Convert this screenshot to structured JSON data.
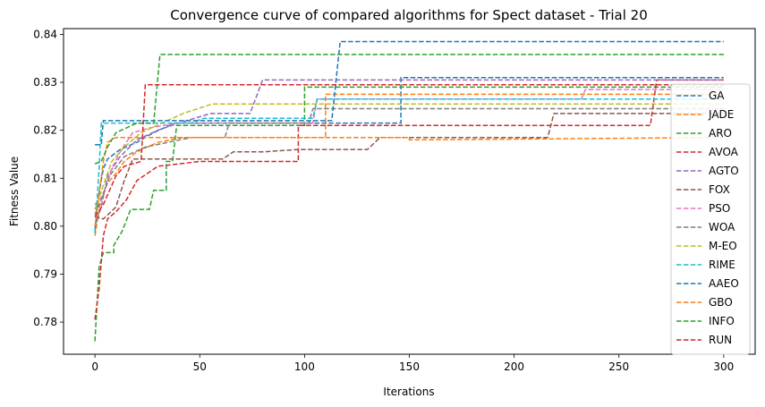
{
  "chart_data": {
    "type": "line",
    "title": "Convergence curve of compared algorithms for Spect dataset - Trial 20",
    "xlabel": "Iterations",
    "ylabel": "Fitness Value",
    "xlim": [
      -15,
      315
    ],
    "ylim": [
      0.7733,
      0.8412
    ],
    "xticks": [
      0,
      50,
      100,
      150,
      200,
      250,
      300
    ],
    "yticks": [
      0.78,
      0.79,
      0.8,
      0.81,
      0.82,
      0.83,
      0.84
    ],
    "ytick_labels": [
      "0.78",
      "0.79",
      "0.80",
      "0.81",
      "0.82",
      "0.83",
      "0.84"
    ],
    "grid": false,
    "legend_position": "right",
    "line_style": "dashed",
    "series": [
      {
        "name": "GA",
        "color": "#1f77b4",
        "points": [
          [
            0,
            0.799
          ],
          [
            2,
            0.807
          ],
          [
            4,
            0.812
          ],
          [
            6,
            0.814
          ],
          [
            12,
            0.816
          ],
          [
            20,
            0.8175
          ],
          [
            28,
            0.8195
          ],
          [
            38,
            0.8215
          ],
          [
            146,
            0.8215
          ],
          [
            146,
            0.831
          ],
          [
            300,
            0.831
          ]
        ]
      },
      {
        "name": "JADE",
        "color": "#ff7f0e",
        "points": [
          [
            0,
            0.798
          ],
          [
            3,
            0.806
          ],
          [
            6,
            0.809
          ],
          [
            10,
            0.811
          ],
          [
            14,
            0.8135
          ],
          [
            20,
            0.8155
          ],
          [
            30,
            0.8175
          ],
          [
            42,
            0.8185
          ],
          [
            110,
            0.8185
          ],
          [
            110,
            0.8275
          ],
          [
            300,
            0.8275
          ]
        ]
      },
      {
        "name": "ARO",
        "color": "#2ca02c",
        "points": [
          [
            0,
            0.776
          ],
          [
            2,
            0.7915
          ],
          [
            4,
            0.7945
          ],
          [
            9,
            0.7945
          ],
          [
            9,
            0.796
          ],
          [
            13,
            0.799
          ],
          [
            17,
            0.8035
          ],
          [
            26,
            0.8035
          ],
          [
            28,
            0.8075
          ],
          [
            34,
            0.8075
          ],
          [
            34,
            0.8135
          ],
          [
            37,
            0.8135
          ],
          [
            39,
            0.821
          ],
          [
            100,
            0.821
          ],
          [
            100,
            0.829
          ],
          [
            300,
            0.829
          ]
        ]
      },
      {
        "name": "AVOA",
        "color": "#d62728",
        "points": [
          [
            0,
            0.7805
          ],
          [
            2,
            0.787
          ],
          [
            4,
            0.798
          ],
          [
            6,
            0.8015
          ],
          [
            10,
            0.803
          ],
          [
            15,
            0.8055
          ],
          [
            20,
            0.8095
          ],
          [
            30,
            0.8125
          ],
          [
            50,
            0.8135
          ],
          [
            97,
            0.8135
          ],
          [
            97,
            0.821
          ],
          [
            265,
            0.821
          ],
          [
            268,
            0.8305
          ],
          [
            300,
            0.8305
          ]
        ]
      },
      {
        "name": "AGTO",
        "color": "#9467bd",
        "points": [
          [
            0,
            0.8
          ],
          [
            3,
            0.804
          ],
          [
            6,
            0.8105
          ],
          [
            12,
            0.8145
          ],
          [
            20,
            0.818
          ],
          [
            30,
            0.82
          ],
          [
            40,
            0.8215
          ],
          [
            55,
            0.8235
          ],
          [
            74,
            0.8235
          ],
          [
            80,
            0.8305
          ],
          [
            300,
            0.8305
          ]
        ]
      },
      {
        "name": "FOX",
        "color": "#8c564b",
        "points": [
          [
            0,
            0.802
          ],
          [
            4,
            0.8015
          ],
          [
            10,
            0.804
          ],
          [
            14,
            0.8095
          ],
          [
            18,
            0.814
          ],
          [
            61,
            0.814
          ],
          [
            66,
            0.8155
          ],
          [
            80,
            0.8155
          ],
          [
            97,
            0.816
          ],
          [
            130,
            0.816
          ],
          [
            136,
            0.8185
          ],
          [
            216,
            0.8185
          ],
          [
            219,
            0.8235
          ],
          [
            300,
            0.8235
          ]
        ]
      },
      {
        "name": "PSO",
        "color": "#e377c2",
        "points": [
          [
            0,
            0.8045
          ],
          [
            4,
            0.8065
          ],
          [
            8,
            0.812
          ],
          [
            12,
            0.8155
          ],
          [
            18,
            0.8195
          ],
          [
            26,
            0.8205
          ],
          [
            40,
            0.8215
          ],
          [
            104,
            0.8215
          ],
          [
            106,
            0.8265
          ],
          [
            232,
            0.8265
          ],
          [
            234,
            0.8285
          ],
          [
            300,
            0.8285
          ]
        ]
      },
      {
        "name": "WOA",
        "color": "#7f7f7f",
        "points": [
          [
            0,
            0.8025
          ],
          [
            4,
            0.8065
          ],
          [
            7,
            0.8105
          ],
          [
            14,
            0.8145
          ],
          [
            24,
            0.8165
          ],
          [
            46,
            0.8185
          ],
          [
            62,
            0.8185
          ],
          [
            64,
            0.8215
          ],
          [
            102,
            0.8215
          ],
          [
            104,
            0.8245
          ],
          [
            300,
            0.8245
          ]
        ]
      },
      {
        "name": "M-EO",
        "color": "#bcbd22",
        "points": [
          [
            0,
            0.8035
          ],
          [
            4,
            0.8085
          ],
          [
            8,
            0.8135
          ],
          [
            14,
            0.8165
          ],
          [
            22,
            0.8195
          ],
          [
            32,
            0.8215
          ],
          [
            42,
            0.8235
          ],
          [
            56,
            0.8255
          ],
          [
            300,
            0.8255
          ]
        ]
      },
      {
        "name": "RIME",
        "color": "#17becf",
        "points": [
          [
            0,
            0.7985
          ],
          [
            2,
            0.812
          ],
          [
            3,
            0.8215
          ],
          [
            46,
            0.8215
          ],
          [
            52,
            0.8225
          ],
          [
            104,
            0.8225
          ],
          [
            106,
            0.8265
          ],
          [
            300,
            0.8265
          ]
        ]
      },
      {
        "name": "AAEO",
        "color": "#1f77b4",
        "points": [
          [
            0,
            0.817
          ],
          [
            3,
            0.817
          ],
          [
            4,
            0.822
          ],
          [
            113,
            0.822
          ],
          [
            117,
            0.8385
          ],
          [
            300,
            0.8385
          ]
        ]
      },
      {
        "name": "GBO",
        "color": "#ff7f0e",
        "points": [
          [
            0,
            0.8
          ],
          [
            4,
            0.8135
          ],
          [
            6,
            0.8175
          ],
          [
            10,
            0.8185
          ],
          [
            150,
            0.8185
          ],
          [
            150,
            0.818
          ],
          [
            300,
            0.8185
          ]
        ]
      },
      {
        "name": "INFO",
        "color": "#2ca02c",
        "points": [
          [
            0,
            0.813
          ],
          [
            3,
            0.8135
          ],
          [
            6,
            0.8165
          ],
          [
            10,
            0.8195
          ],
          [
            20,
            0.8215
          ],
          [
            28,
            0.8215
          ],
          [
            31,
            0.8358
          ],
          [
            300,
            0.8358
          ]
        ]
      },
      {
        "name": "RUN",
        "color": "#d62728",
        "points": [
          [
            0,
            0.802
          ],
          [
            4,
            0.8045
          ],
          [
            10,
            0.8105
          ],
          [
            14,
            0.8125
          ],
          [
            22,
            0.8135
          ],
          [
            24,
            0.8295
          ],
          [
            300,
            0.8295
          ]
        ]
      }
    ]
  }
}
